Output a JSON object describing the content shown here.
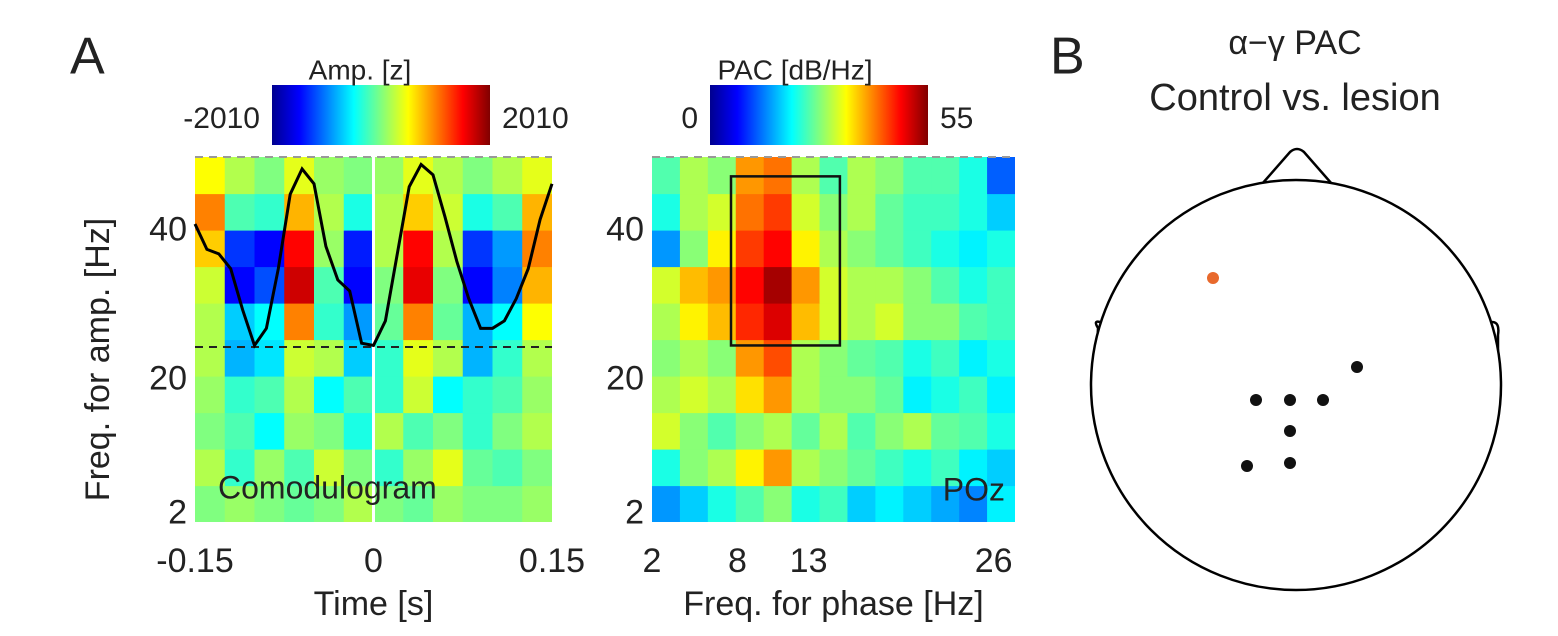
{
  "panel_labels": [
    "A",
    "B"
  ],
  "chart_data": [
    {
      "type": "heatmap",
      "annotation": "Comodulogram",
      "xlabel": "Time [s]",
      "ylabel": "Freq. for amp. [Hz]",
      "xlim": [
        -0.15,
        0.15
      ],
      "xticks": [
        -0.15,
        0,
        0.15
      ],
      "ylim": [
        1,
        50
      ],
      "yticks": [
        2,
        20,
        40
      ],
      "colorbar_label": "Amp. [z]",
      "clim": [
        -2010,
        2010
      ],
      "cticks": [
        -2010,
        2010
      ],
      "colormap": "jet",
      "z": [
        [
          0,
          100,
          0,
          -100,
          0,
          200,
          0,
          -100,
          100,
          0,
          0,
          100
        ],
        [
          200,
          -300,
          100,
          -200,
          300,
          0,
          -300,
          100,
          400,
          -100,
          -200,
          0
        ],
        [
          0,
          -200,
          -500,
          100,
          0,
          -400,
          200,
          -200,
          0,
          -300,
          0,
          200
        ],
        [
          100,
          -300,
          -200,
          200,
          -500,
          -200,
          -300,
          300,
          -500,
          -300,
          -200,
          100
        ],
        [
          200,
          -800,
          -600,
          300,
          200,
          -700,
          -300,
          400,
          200,
          -800,
          -300,
          200
        ],
        [
          200,
          -700,
          -500,
          1000,
          -300,
          -900,
          -100,
          1000,
          -100,
          -800,
          -500,
          500
        ],
        [
          300,
          -1500,
          -1200,
          1700,
          -200,
          -1500,
          0,
          1600,
          0,
          -1500,
          -1000,
          800
        ],
        [
          700,
          -1300,
          -1500,
          1500,
          100,
          -1400,
          200,
          1500,
          200,
          -1300,
          -900,
          1000
        ],
        [
          1000,
          -200,
          -300,
          800,
          200,
          -400,
          200,
          700,
          300,
          -400,
          -200,
          800
        ],
        [
          500,
          200,
          0,
          400,
          100,
          0,
          100,
          400,
          200,
          0,
          200,
          400
        ]
      ],
      "series": [
        {
          "color": "#000000",
          "x": [
            -0.15,
            -0.14,
            -0.13,
            -0.12,
            -0.11,
            -0.1,
            -0.09,
            -0.08,
            -0.07,
            -0.06,
            -0.05,
            -0.04,
            -0.03,
            -0.02,
            -0.01,
            0,
            0.01,
            0.02,
            0.03,
            0.04,
            0.05,
            0.06,
            0.07,
            0.08,
            0.09,
            0.1,
            0.11,
            0.12,
            0.13,
            0.14,
            0.15
          ],
          "values": [
            41,
            37.6,
            37,
            35,
            29.5,
            24.7,
            27,
            35,
            45,
            48.4,
            46.4,
            38,
            33.5,
            32,
            25,
            24.7,
            28,
            37,
            46,
            49,
            47.6,
            42,
            36,
            31,
            27,
            27,
            28,
            31,
            35,
            41.6,
            46.4
          ]
        }
      ],
      "hlines": [
        24.5
      ],
      "vlines": [
        0
      ]
    },
    {
      "type": "heatmap",
      "annotation": "POz",
      "xlabel": "Freq. for phase [Hz]",
      "xlim": [
        2,
        27.5
      ],
      "xticks": [
        2,
        8,
        13,
        26
      ],
      "ylim": [
        1,
        50
      ],
      "yticks": [
        2,
        20,
        40
      ],
      "colorbar_label": "PAC [dB/Hz]",
      "clim": [
        0,
        55
      ],
      "cticks": [
        0,
        55
      ],
      "colormap": "jet",
      "z": [
        [
          15,
          18,
          22,
          25,
          28,
          22,
          24,
          18,
          20,
          18,
          16,
          14,
          20
        ],
        [
          22,
          28,
          30,
          35,
          40,
          30,
          28,
          26,
          24,
          22,
          24,
          20,
          18
        ],
        [
          32,
          28,
          25,
          28,
          30,
          26,
          30,
          25,
          28,
          30,
          26,
          25,
          22
        ],
        [
          30,
          32,
          30,
          36,
          40,
          30,
          28,
          28,
          26,
          20,
          22,
          24,
          20
        ],
        [
          28,
          30,
          28,
          40,
          44,
          30,
          28,
          26,
          25,
          22,
          24,
          20,
          22
        ],
        [
          30,
          35,
          38,
          46,
          50,
          38,
          32,
          30,
          32,
          28,
          28,
          25,
          24
        ],
        [
          32,
          38,
          40,
          48,
          53,
          40,
          32,
          30,
          30,
          28,
          25,
          22,
          24
        ],
        [
          15,
          28,
          35,
          45,
          48,
          35,
          30,
          28,
          26,
          24,
          22,
          20,
          22
        ],
        [
          22,
          30,
          32,
          42,
          45,
          32,
          28,
          30,
          26,
          24,
          24,
          22,
          18
        ],
        [
          25,
          30,
          28,
          40,
          42,
          30,
          25,
          30,
          28,
          25,
          25,
          22,
          12
        ]
      ],
      "box": {
        "x": [
          7.55,
          15.2
        ],
        "y": [
          24.7,
          47.4
        ]
      }
    },
    {
      "type": "topoplot",
      "title": [
        "α−γ PAC",
        "Control vs. lesion"
      ]
    }
  ]
}
